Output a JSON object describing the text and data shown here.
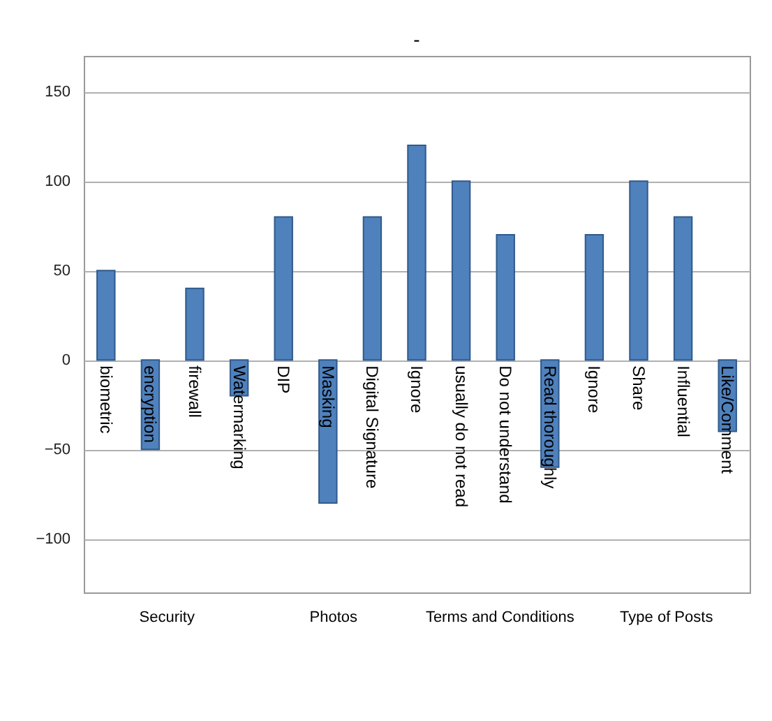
{
  "chart_data": {
    "type": "bar",
    "title": "-",
    "categories": [
      "biometric",
      "encryption",
      "firewall",
      "Watermarking",
      "DIP",
      "Masking",
      "Digital Signature",
      "Ignore",
      "usually do not read",
      "Do not understand",
      "Read thoroughly",
      "Ignore",
      "Share",
      "Influential",
      "Like/Comment"
    ],
    "values": [
      50,
      -50,
      40,
      -20,
      80,
      -80,
      80,
      120,
      100,
      70,
      -60,
      70,
      100,
      80,
      -40
    ],
    "color": "#4f81bd",
    "ylim": [
      -130,
      170
    ],
    "yticks": [
      -100,
      -50,
      0,
      50,
      100,
      150
    ],
    "grid": "y",
    "annotations": [
      "Security",
      "Photos",
      "Terms and Conditions",
      "Type of Posts"
    ]
  }
}
